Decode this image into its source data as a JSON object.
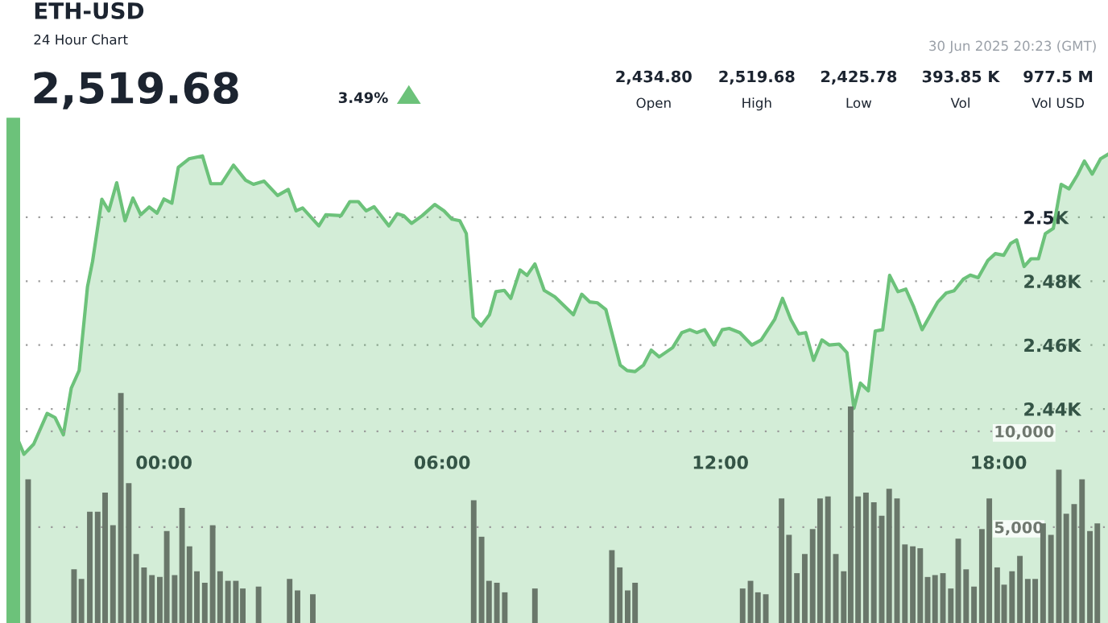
{
  "chart_data": {
    "type": "area",
    "title": "ETH-USD",
    "subtitle": "24 Hour Chart",
    "annotations": [
      "2,519.68",
      "3.49%",
      "30 Jun 2025 20:23 (GMT)",
      "2,434.80",
      "Open",
      "2,519.68",
      "High",
      "2,425.78",
      "Low",
      "393.85 K",
      "Vol",
      "977.5 M",
      "Vol USD"
    ],
    "xlim": [
      -3.25,
      20.36
    ],
    "xticks": [
      {
        "value": 0,
        "label": "00:00"
      },
      {
        "value": 6,
        "label": "06:00"
      },
      {
        "value": 12,
        "label": "12:00"
      },
      {
        "value": 18,
        "label": "18:00"
      }
    ],
    "ylim": [
      2373,
      2529
    ],
    "yticks": [
      {
        "value": 2440,
        "label": "2.44K"
      },
      {
        "value": 2460,
        "label": "2.46K"
      },
      {
        "value": 2480,
        "label": "2.48K"
      },
      {
        "value": 2500,
        "label": "2.5K"
      }
    ],
    "y2lim": [
      0,
      26000
    ],
    "y2ticks": [
      {
        "value": 5000,
        "label": "5,000"
      },
      {
        "value": 10000,
        "label": "10,000"
      }
    ],
    "grid": "y",
    "series": [
      {
        "color": "#6cc27a",
        "x": [
          -3.25,
          -3.02,
          -2.81,
          -2.52,
          -2.35,
          -2.17,
          -2.0,
          -1.83,
          -1.65,
          -1.54,
          -1.34,
          -1.19,
          -1.02,
          -0.84,
          -0.67,
          -0.5,
          -0.32,
          -0.15,
          0,
          0.17,
          0.31,
          0.54,
          0.83,
          1.01,
          1.24,
          1.5,
          1.76,
          1.93,
          2.16,
          2.45,
          2.68,
          2.85,
          2.99,
          3.34,
          3.49,
          3.82,
          4.01,
          4.19,
          4.36,
          4.53,
          4.85,
          5.03,
          5.17,
          5.34,
          5.57,
          5.84,
          6.04,
          6.21,
          6.38,
          6.52,
          6.67,
          6.84,
          7.02,
          7.16,
          7.34,
          7.48,
          7.68,
          7.83,
          8.0,
          8.2,
          8.43,
          8.83,
          9.01,
          9.18,
          9.35,
          9.53,
          9.84,
          9.99,
          10.16,
          10.34,
          10.51,
          10.68,
          10.97,
          11.17,
          11.34,
          11.49,
          11.66,
          11.86,
          12.04,
          12.19,
          12.42,
          12.68,
          12.88,
          13.17,
          13.34,
          13.52,
          13.69,
          13.84,
          14.01,
          14.19,
          14.35,
          14.56,
          14.73,
          14.88,
          15.02,
          15.19,
          15.34,
          15.5,
          15.65,
          15.83,
          16.0,
          16.17,
          16.35,
          16.69,
          16.87,
          17.04,
          17.24,
          17.39,
          17.56,
          17.77,
          17.93,
          18.11,
          18.26,
          18.39,
          18.55,
          18.7,
          18.86,
          19.01,
          19.18,
          19.35,
          19.52,
          19.7,
          19.85,
          20.02,
          20.2,
          20.36
        ],
        "values": [
          2433.8,
          2425.8,
          2429,
          2438.6,
          2437.3,
          2431.9,
          2446.5,
          2452,
          2478.2,
          2486.2,
          2505.6,
          2502,
          2510.8,
          2498.9,
          2506,
          2500.8,
          2503.2,
          2501.3,
          2505.7,
          2504.4,
          2515.6,
          2518.3,
          2519.2,
          2510.5,
          2510.5,
          2516.3,
          2511.6,
          2510.3,
          2511.3,
          2506.8,
          2508.7,
          2502,
          2502.9,
          2497.3,
          2500.8,
          2500.5,
          2504.9,
          2504.9,
          2502,
          2503.3,
          2497.3,
          2501.1,
          2500.5,
          2498.1,
          2500.5,
          2504,
          2502,
          2499.4,
          2498.9,
          2494.9,
          2468.7,
          2466,
          2469.5,
          2476.7,
          2477.1,
          2474.6,
          2483.5,
          2481.8,
          2485.4,
          2477.1,
          2475.1,
          2469.5,
          2475.9,
          2473.5,
          2473.2,
          2471.1,
          2453.7,
          2452,
          2451.7,
          2453.7,
          2458.4,
          2456.3,
          2459.2,
          2463.9,
          2464.8,
          2463.9,
          2464.8,
          2460,
          2464.8,
          2465.2,
          2463.9,
          2460,
          2461.6,
          2468,
          2474.6,
          2468,
          2463.5,
          2463.9,
          2455.2,
          2461.6,
          2460,
          2460.3,
          2457.6,
          2440.2,
          2448.1,
          2445.7,
          2464.4,
          2464.8,
          2481.8,
          2476.7,
          2477.5,
          2471.9,
          2464.8,
          2473.5,
          2476.3,
          2477,
          2480.6,
          2481.9,
          2481.1,
          2486.5,
          2488.6,
          2488.1,
          2491.8,
          2492.9,
          2484.6,
          2487,
          2487,
          2494.9,
          2496.5,
          2510.3,
          2508.9,
          2513.2,
          2517.6,
          2513.5,
          2518.3,
          2519.7
        ]
      },
      {
        "type": "bar",
        "axis": "y2",
        "color": "#69776a",
        "x": [
          -2.93,
          -1.94,
          -1.78,
          -1.6,
          -1.43,
          -1.27,
          -1.1,
          -0.93,
          -0.76,
          -0.6,
          -0.43,
          -0.26,
          -0.09,
          0.06,
          0.23,
          0.39,
          0.55,
          0.71,
          0.88,
          1.05,
          1.21,
          1.38,
          1.55,
          1.7,
          2.04,
          2.71,
          2.88,
          3.21,
          6.68,
          6.85,
          7.01,
          7.18,
          7.35,
          8.0,
          9.66,
          9.83,
          10.0,
          10.16,
          12.48,
          12.65,
          12.81,
          12.98,
          13.32,
          13.48,
          13.65,
          13.82,
          13.99,
          14.15,
          14.32,
          14.49,
          14.66,
          14.81,
          14.97,
          15.14,
          15.31,
          15.48,
          15.64,
          15.81,
          15.98,
          16.15,
          16.31,
          16.47,
          16.63,
          16.8,
          16.97,
          17.13,
          17.3,
          17.47,
          17.64,
          17.8,
          17.97,
          18.12,
          18.29,
          18.46,
          18.63,
          18.79,
          18.96,
          19.13,
          19.3,
          19.46,
          19.63,
          19.8,
          19.97,
          20.13
        ],
        "values": [
          7500,
          2800,
          2300,
          5800,
          5800,
          6800,
          5100,
          12000,
          7300,
          3600,
          2900,
          2500,
          2400,
          4800,
          2500,
          6000,
          4000,
          2700,
          2100,
          5100,
          2700,
          2200,
          2200,
          1800,
          1900,
          2300,
          1700,
          1500,
          6400,
          4500,
          2200,
          2100,
          1600,
          1800,
          3800,
          2900,
          1700,
          2100,
          1800,
          2200,
          1600,
          1500,
          6500,
          4600,
          2600,
          3600,
          4900,
          6500,
          6600,
          3600,
          2700,
          11300,
          6600,
          6800,
          6300,
          5600,
          7000,
          6500,
          4100,
          4000,
          3900,
          2400,
          2500,
          2600,
          1800,
          4400,
          2800,
          1900,
          4900,
          6500,
          2900,
          2000,
          2700,
          3500,
          2300,
          2300,
          5200,
          4600,
          8000,
          5700,
          6200,
          7500,
          4800,
          5200
        ]
      }
    ]
  }
}
